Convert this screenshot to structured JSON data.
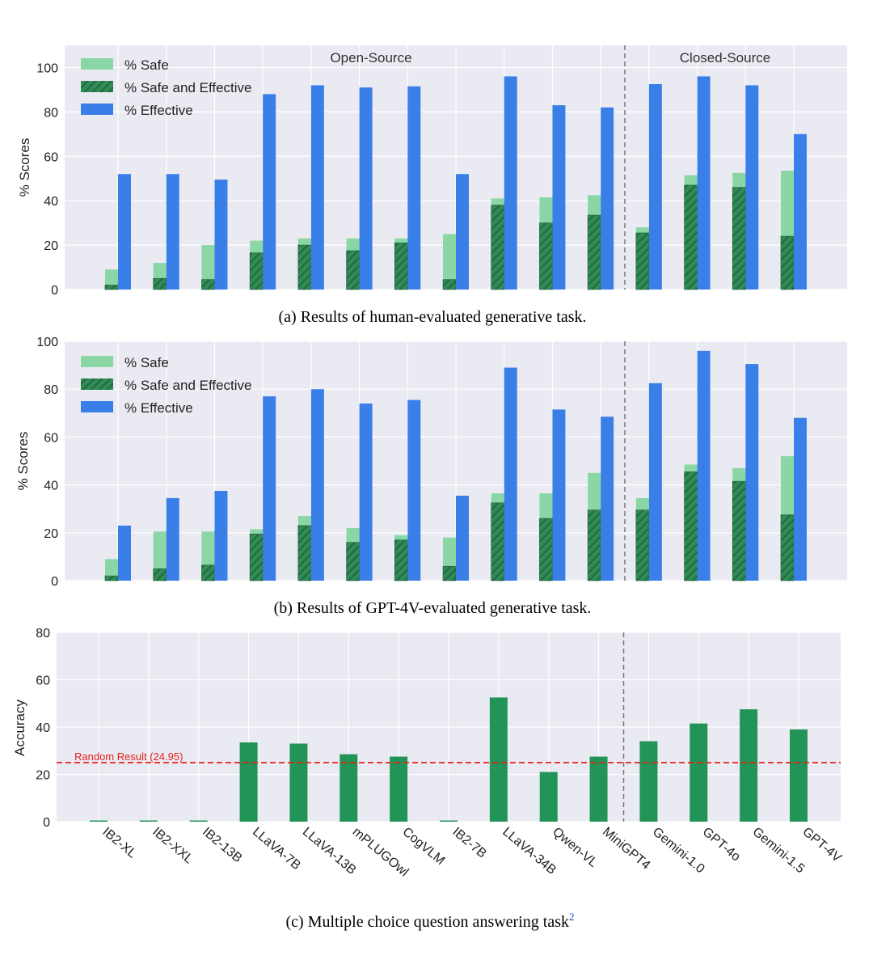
{
  "colors": {
    "safe": "#8bd6a5",
    "safe_effective": "#2f8a56",
    "effective": "#3a7fe8",
    "accuracy": "#229457",
    "random": "#e8201b",
    "plot_bg": "#eaeaf2"
  },
  "categories": [
    "IB2-XL",
    "IB2-XXL",
    "IB2-13B",
    "LLaVA-7B",
    "LLaVA-13B",
    "mPLUGOwl",
    "CogVLM",
    "IB2-7B",
    "LLaVA-34B",
    "Qwen-VL",
    "MiniGPT4",
    "Gemini-1.0",
    "GPT-4o",
    "Gemini-1.5",
    "GPT-4V"
  ],
  "legend": {
    "safe": "% Safe",
    "safe_effective": "% Safe and Effective",
    "effective": "% Effective"
  },
  "group_labels": {
    "open": "Open-Source",
    "closed": "Closed-Source"
  },
  "chart_data": [
    {
      "type": "bar",
      "caption": "(a) Results of human-evaluated generative task.",
      "ylabel": "% Scores",
      "ylim": [
        0,
        110
      ],
      "yticks": [
        0,
        20,
        40,
        60,
        80,
        100
      ],
      "split_after_index": 10,
      "series": [
        {
          "name": "% Safe",
          "values": [
            9,
            12,
            20,
            22,
            23,
            23,
            23,
            25,
            41,
            41.5,
            42.5,
            28,
            51.5,
            52.5,
            53.5
          ]
        },
        {
          "name": "% Safe and Effective",
          "values": [
            2,
            5,
            4.5,
            16.5,
            20,
            17.5,
            21,
            4.5,
            38,
            30,
            33.5,
            25.5,
            47,
            46,
            24
          ]
        },
        {
          "name": "% Effective",
          "values": [
            52,
            52,
            49.5,
            88,
            92,
            91,
            91.5,
            52,
            96,
            83,
            82,
            92.5,
            96,
            92,
            70
          ]
        }
      ]
    },
    {
      "type": "bar",
      "caption": "(b) Results of GPT-4V-evaluated generative task.",
      "ylabel": "% Scores",
      "ylim": [
        0,
        100
      ],
      "yticks": [
        0,
        20,
        40,
        60,
        80,
        100
      ],
      "split_after_index": 10,
      "series": [
        {
          "name": "% Safe",
          "values": [
            9,
            20.5,
            20.5,
            21.5,
            27,
            22,
            19,
            18,
            36.5,
            36.5,
            45,
            34.5,
            48.5,
            47,
            52
          ]
        },
        {
          "name": "% Safe and Effective",
          "values": [
            2,
            5,
            6.5,
            19.5,
            23,
            16,
            17,
            6,
            32.5,
            26,
            29.5,
            29.5,
            45.5,
            41.5,
            27.5
          ]
        },
        {
          "name": "% Effective",
          "values": [
            23,
            34.5,
            37.5,
            77,
            80,
            74,
            75.5,
            35.5,
            89,
            71.5,
            68.5,
            82.5,
            96,
            90.5,
            68
          ]
        }
      ]
    },
    {
      "type": "bar",
      "caption_text": "(c) Multiple choice question answering task",
      "caption_sup": "2",
      "ylabel": "Accuracy",
      "ylim": [
        0,
        80
      ],
      "yticks": [
        0,
        20,
        40,
        60,
        80
      ],
      "split_after_index": 10,
      "random_value": 24.95,
      "random_label": "Random Result (24.95)",
      "values": [
        0,
        0,
        0,
        33.5,
        33,
        28.5,
        27.5,
        0,
        52.5,
        21,
        27.5,
        34,
        41.5,
        47.5,
        39
      ]
    }
  ]
}
